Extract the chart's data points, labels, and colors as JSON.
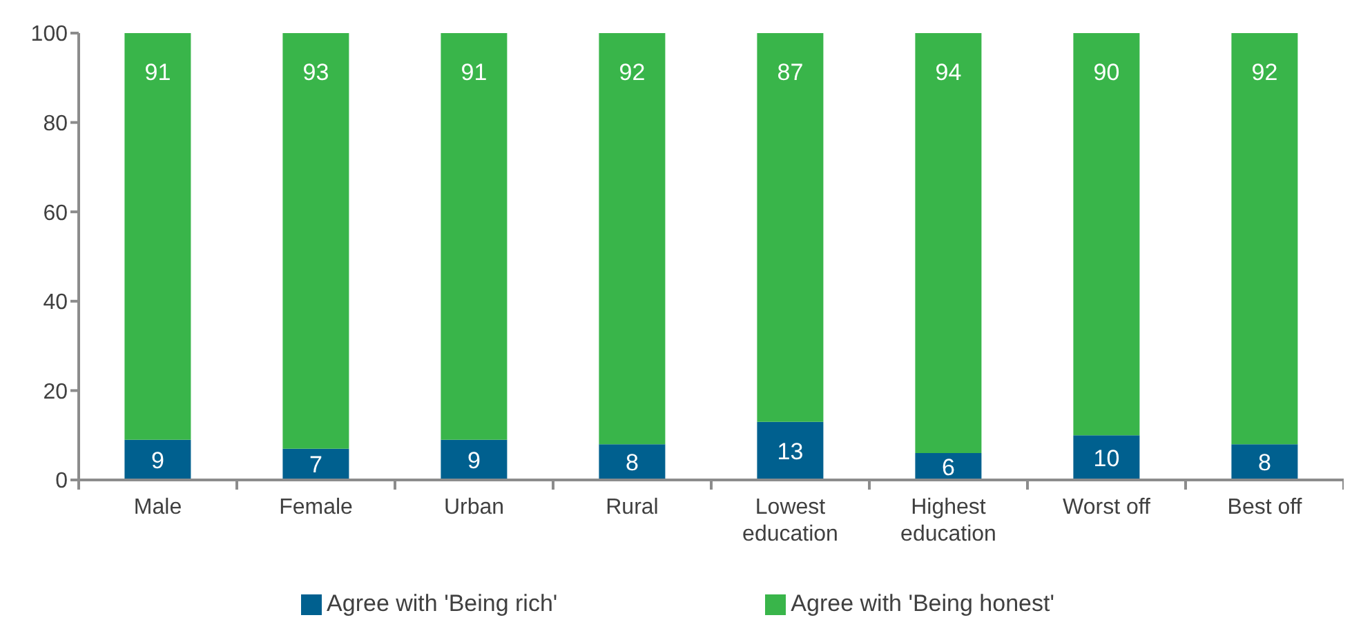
{
  "chart_data": {
    "type": "bar",
    "stacked": true,
    "categories": [
      "Male",
      "Female",
      "Urban",
      "Rural",
      "Lowest education",
      "Highest education",
      "Worst off",
      "Best off"
    ],
    "series": [
      {
        "name": "Agree with 'Being rich'",
        "color": "#00608f",
        "values": [
          9,
          7,
          9,
          8,
          13,
          6,
          10,
          8
        ]
      },
      {
        "name": "Agree with 'Being honest'",
        "color": "#39b54a",
        "values": [
          91,
          93,
          91,
          92,
          87,
          94,
          90,
          92
        ]
      }
    ],
    "ylim": [
      0,
      100
    ],
    "yticks": [
      0,
      20,
      40,
      60,
      80,
      100
    ],
    "data_labels": true,
    "legend": "bottom"
  }
}
